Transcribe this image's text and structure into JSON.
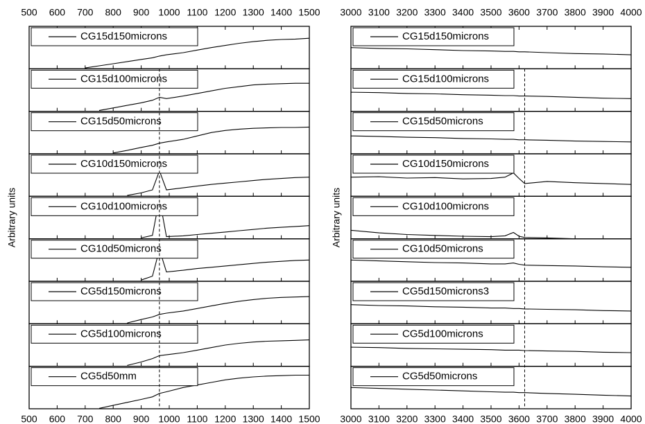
{
  "chart_data": [
    {
      "type": "line",
      "ylabel": "Arbitrary units",
      "xlim": [
        500,
        1500
      ],
      "xticks": [
        500,
        600,
        700,
        800,
        900,
        1000,
        1100,
        1200,
        1300,
        1400,
        1500
      ],
      "reference_line_x": 965,
      "x": [
        700,
        750,
        800,
        850,
        900,
        940,
        965,
        990,
        1050,
        1100,
        1150,
        1200,
        1250,
        1300,
        1350,
        1400,
        1450,
        1500
      ],
      "panels": [
        {
          "ylim": [
            0,
            1
          ],
          "series": [
            {
              "name": "CG15d150microns",
              "color": "#000000",
              "values": [
                0.02,
                0.07,
                0.12,
                0.17,
                0.22,
                0.26,
                0.3,
                0.33,
                0.38,
                0.44,
                0.5,
                0.55,
                0.6,
                0.64,
                0.67,
                0.69,
                0.7,
                0.72
              ]
            }
          ]
        },
        {
          "ylim": [
            0,
            1
          ],
          "series": [
            {
              "name": "CG15d100microns",
              "color": "#000000",
              "values": [
                null,
                0.02,
                0.08,
                0.14,
                0.2,
                0.26,
                0.33,
                0.3,
                0.36,
                0.42,
                0.48,
                0.54,
                0.58,
                0.62,
                0.64,
                0.65,
                0.66,
                0.66
              ]
            }
          ]
        },
        {
          "ylim": [
            0,
            1
          ],
          "series": [
            {
              "name": "CG15d50microns",
              "color": "#000000",
              "values": [
                null,
                null,
                0.02,
                0.08,
                0.15,
                0.2,
                0.25,
                0.28,
                0.34,
                0.42,
                0.5,
                0.55,
                0.58,
                0.6,
                0.61,
                0.62,
                0.62,
                0.63
              ]
            }
          ]
        },
        {
          "ylim": [
            0,
            1
          ],
          "series": [
            {
              "name": "CG10d150microns",
              "color": "#000000",
              "values": [
                null,
                null,
                null,
                0.02,
                0.08,
                0.15,
                0.6,
                0.15,
                0.2,
                0.24,
                0.28,
                0.31,
                0.34,
                0.37,
                0.4,
                0.42,
                0.44,
                0.45
              ]
            }
          ]
        },
        {
          "ylim": [
            0,
            1
          ],
          "series": [
            {
              "name": "CG10d100microns",
              "color": "#000000",
              "values": [
                null,
                null,
                null,
                null,
                0.02,
                0.08,
                0.95,
                0.05,
                0.07,
                0.1,
                0.13,
                0.16,
                0.19,
                0.22,
                0.25,
                0.27,
                0.29,
                0.31
              ]
            }
          ]
        },
        {
          "ylim": [
            0,
            1
          ],
          "series": [
            {
              "name": "CG10d50microns",
              "color": "#000000",
              "values": [
                null,
                null,
                null,
                null,
                0.03,
                0.12,
                0.75,
                0.22,
                0.26,
                0.3,
                0.33,
                0.36,
                0.39,
                0.42,
                0.45,
                0.47,
                0.49,
                0.5
              ]
            }
          ]
        },
        {
          "ylim": [
            0,
            1
          ],
          "series": [
            {
              "name": "CG5d150microns",
              "color": "#000000",
              "values": [
                null,
                null,
                null,
                0.02,
                0.1,
                0.16,
                0.22,
                0.25,
                0.3,
                0.36,
                0.42,
                0.48,
                0.53,
                0.57,
                0.6,
                0.62,
                0.63,
                0.64
              ]
            }
          ]
        },
        {
          "ylim": [
            0,
            1
          ],
          "series": [
            {
              "name": "CG5d100microns",
              "color": "#000000",
              "values": [
                null,
                null,
                null,
                0.02,
                0.1,
                0.18,
                0.25,
                0.27,
                0.32,
                0.38,
                0.44,
                0.5,
                0.54,
                0.57,
                0.59,
                0.6,
                0.61,
                0.62
              ]
            }
          ]
        },
        {
          "ylim": [
            0,
            1
          ],
          "series": [
            {
              "name": "CG5d50mm",
              "color": "#000000",
              "values": [
                null,
                0.01,
                0.08,
                0.15,
                0.22,
                0.28,
                0.36,
                0.4,
                0.5,
                0.56,
                0.62,
                0.68,
                0.72,
                0.75,
                0.77,
                0.78,
                0.79,
                0.79
              ]
            }
          ]
        }
      ]
    },
    {
      "type": "line",
      "ylabel": "Arbitrary units",
      "xlim": [
        3000,
        4000
      ],
      "xticks": [
        3000,
        3100,
        3200,
        3300,
        3400,
        3500,
        3600,
        3700,
        3800,
        3900,
        4000
      ],
      "reference_line_x": 3620,
      "x": [
        3000,
        3100,
        3200,
        3300,
        3400,
        3500,
        3550,
        3580,
        3600,
        3620,
        3700,
        3800,
        3900,
        4000
      ],
      "panels": [
        {
          "ylim": [
            0,
            1
          ],
          "series": [
            {
              "name": "CG15d150microns",
              "color": "#000000",
              "values": [
                0.5,
                0.48,
                0.47,
                0.45,
                0.43,
                0.42,
                0.41,
                0.41,
                0.4,
                0.4,
                0.38,
                0.36,
                0.35,
                0.33
              ]
            }
          ]
        },
        {
          "ylim": [
            0,
            1
          ],
          "series": [
            {
              "name": "CG15d100microns",
              "color": "#000000",
              "values": [
                0.45,
                0.44,
                0.42,
                0.41,
                0.39,
                0.38,
                0.37,
                0.37,
                0.36,
                0.36,
                0.35,
                0.33,
                0.31,
                0.3
              ]
            }
          ]
        },
        {
          "ylim": [
            0,
            1
          ],
          "series": [
            {
              "name": "CG15d50microns",
              "color": "#000000",
              "values": [
                0.42,
                0.41,
                0.39,
                0.38,
                0.36,
                0.35,
                0.34,
                0.34,
                0.33,
                0.33,
                0.32,
                0.3,
                0.29,
                0.28
              ]
            }
          ]
        },
        {
          "ylim": [
            0,
            1
          ],
          "series": [
            {
              "name": "CG10d150microns",
              "color": "#000000",
              "values": [
                0.45,
                0.46,
                0.43,
                0.44,
                0.41,
                0.42,
                0.45,
                0.55,
                0.42,
                0.3,
                0.35,
                0.32,
                0.3,
                0.28
              ]
            }
          ]
        },
        {
          "ylim": [
            0,
            1
          ],
          "series": [
            {
              "name": "CG10d100microns",
              "color": "#000000",
              "values": [
                0.2,
                0.14,
                0.1,
                0.08,
                0.06,
                0.05,
                0.07,
                0.15,
                0.06,
                0.03,
                0.02,
                0.0,
                null,
                null
              ]
            }
          ]
        },
        {
          "ylim": [
            0,
            1
          ],
          "series": [
            {
              "name": "CG10d50microns",
              "color": "#000000",
              "values": [
                0.5,
                0.48,
                0.46,
                0.44,
                0.43,
                0.41,
                0.41,
                0.43,
                0.4,
                0.38,
                0.37,
                0.36,
                0.34,
                0.33
              ]
            }
          ]
        },
        {
          "ylim": [
            0,
            1
          ],
          "series": [
            {
              "name": "CG5d150microns3",
              "color": "#000000",
              "values": [
                0.45,
                0.43,
                0.42,
                0.4,
                0.39,
                0.37,
                0.37,
                0.36,
                0.36,
                0.35,
                0.34,
                0.33,
                0.31,
                0.3
              ]
            }
          ]
        },
        {
          "ylim": [
            0,
            1
          ],
          "series": [
            {
              "name": "CG5d100microns",
              "color": "#000000",
              "values": [
                0.45,
                0.44,
                0.42,
                0.41,
                0.4,
                0.39,
                0.38,
                0.38,
                0.38,
                0.37,
                0.36,
                0.35,
                0.33,
                0.32
              ]
            }
          ]
        },
        {
          "ylim": [
            0,
            1
          ],
          "series": [
            {
              "name": "CG5d50microns",
              "color": "#000000",
              "values": [
                0.5,
                0.48,
                0.46,
                0.44,
                0.42,
                0.4,
                0.39,
                0.39,
                0.38,
                0.38,
                0.36,
                0.34,
                0.32,
                0.3
              ]
            }
          ]
        }
      ]
    }
  ]
}
